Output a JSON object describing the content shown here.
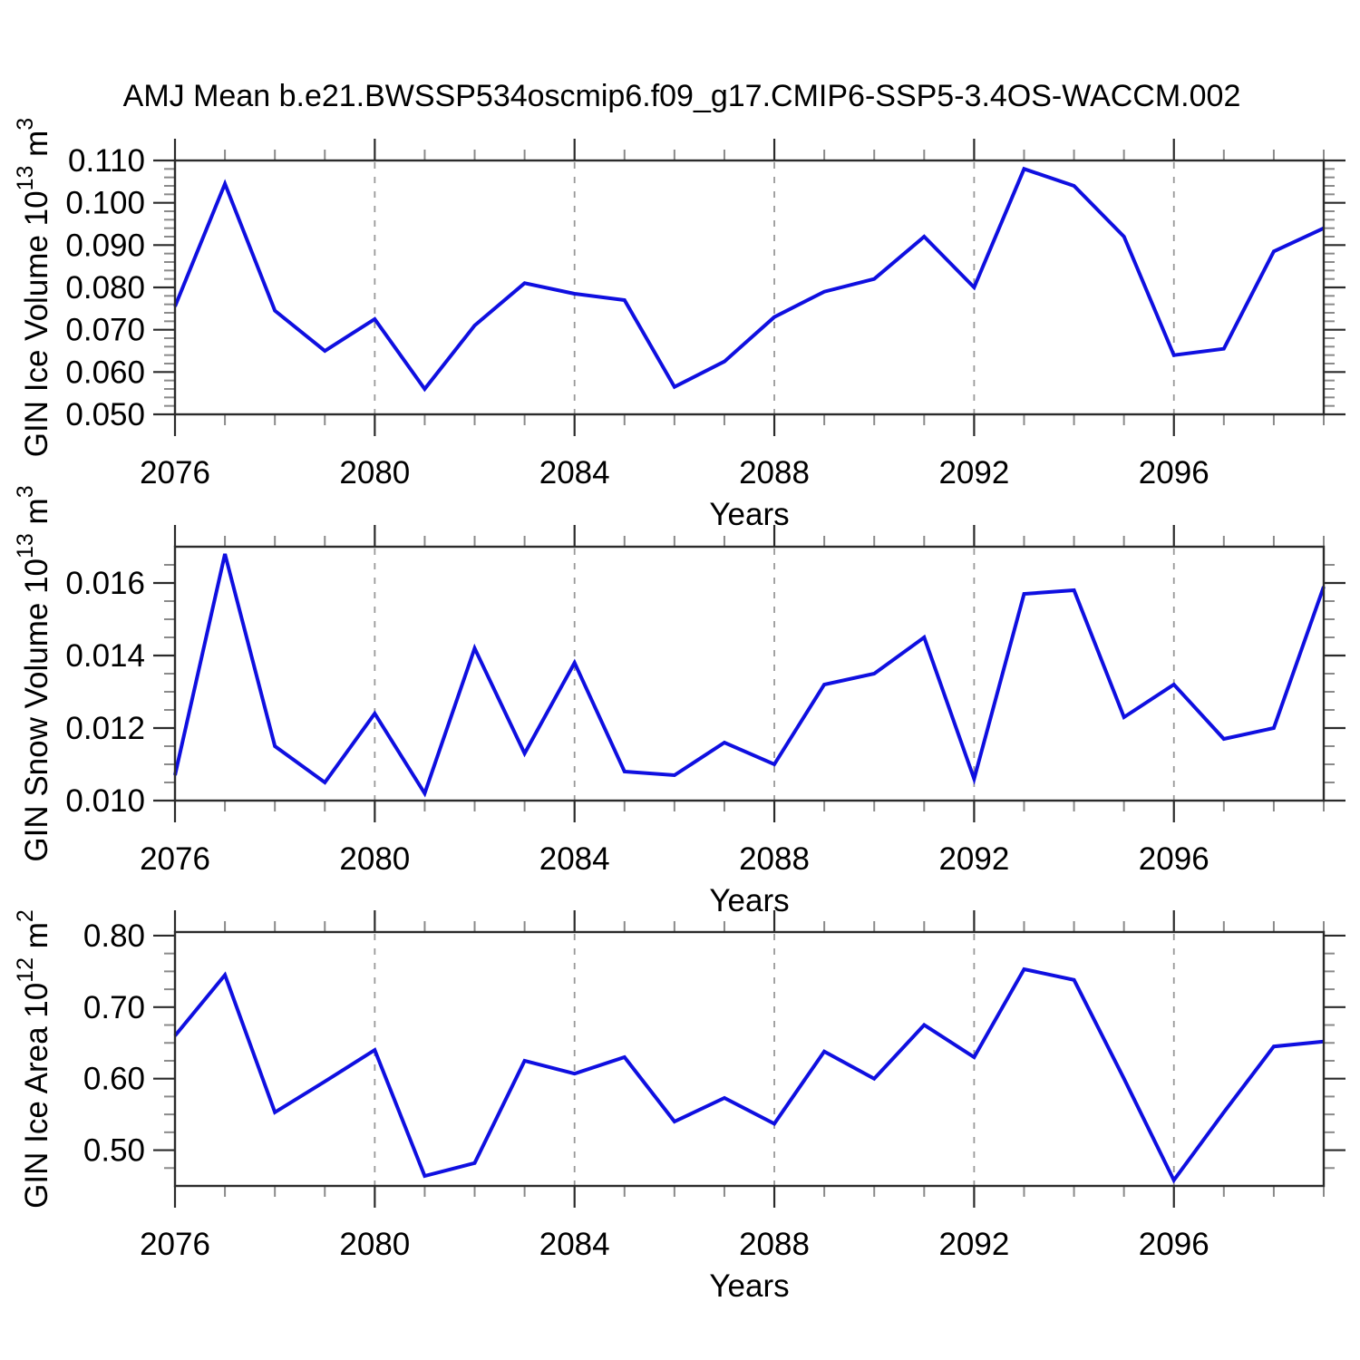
{
  "figure": {
    "title": "AMJ Mean b.e21.BWSSP534oscmip6.f09_g17.CMIP6-SSP5-3.4OS-WACCM.002",
    "background": "#ffffff"
  },
  "chart_data": {
    "type": "line",
    "title": "AMJ Mean b.e21.BWSSP534oscmip6.f09_g17.CMIP6-SSP5-3.4OS-WACCM.002",
    "xlabel": "Years",
    "x": [
      2076,
      2077,
      2078,
      2079,
      2080,
      2081,
      2082,
      2083,
      2084,
      2085,
      2086,
      2087,
      2088,
      2089,
      2090,
      2091,
      2092,
      2093,
      2094,
      2095,
      2096,
      2097,
      2098,
      2099
    ],
    "xlim": [
      2076,
      2099
    ],
    "x_major_ticks": [
      2076,
      2080,
      2084,
      2088,
      2092,
      2096
    ],
    "x_tick_labels": [
      "2076",
      "2080",
      "2084",
      "2088",
      "2092",
      "2096"
    ],
    "x_minor_step_years": 1,
    "x_gridlines": [
      2080,
      2084,
      2088,
      2092,
      2096
    ],
    "grid_style": "vertical-dashed",
    "legend": "none",
    "colors": {
      "line": "#0F0FE0",
      "axis": "#2b2b2b",
      "minor_tick": "#8a8a8a",
      "gridline": "#999999",
      "text": "#000000"
    },
    "panels": [
      {
        "id": "gin-ice-volume",
        "ylabel": "GIN Ice Volume 10^13 m^3",
        "ylabel_parts": [
          {
            "text": "GIN Ice Volume 10",
            "sup": false
          },
          {
            "text": "13",
            "sup": true
          },
          {
            "text": " m",
            "sup": false
          },
          {
            "text": "3",
            "sup": true
          }
        ],
        "ylim": [
          0.05,
          0.11
        ],
        "y_major_ticks": [
          0.05,
          0.06,
          0.07,
          0.08,
          0.09,
          0.1,
          0.11
        ],
        "y_tick_labels": [
          "0.050",
          "0.060",
          "0.070",
          "0.080",
          "0.090",
          "0.100",
          "0.110"
        ],
        "y_minor_step": 0.002,
        "values": [
          0.0755,
          0.1045,
          0.0745,
          0.065,
          0.0725,
          0.056,
          0.071,
          0.081,
          0.0785,
          0.077,
          0.0565,
          0.0625,
          0.073,
          0.079,
          0.082,
          0.092,
          0.08,
          0.108,
          0.104,
          0.092,
          0.064,
          0.0655,
          0.0885,
          0.094
        ]
      },
      {
        "id": "gin-snow-volume",
        "ylabel": "GIN Snow Volume 10^13 m^3",
        "ylabel_parts": [
          {
            "text": "GIN Snow Volume 10",
            "sup": false
          },
          {
            "text": "13",
            "sup": true
          },
          {
            "text": " m",
            "sup": false
          },
          {
            "text": "3",
            "sup": true
          }
        ],
        "ylim": [
          0.01,
          0.017
        ],
        "y_major_ticks": [
          0.01,
          0.012,
          0.014,
          0.016
        ],
        "y_tick_labels": [
          "0.010",
          "0.012",
          "0.014",
          "0.016"
        ],
        "y_minor_step": 0.0005,
        "values": [
          0.0107,
          0.0168,
          0.0115,
          0.0105,
          0.0124,
          0.0102,
          0.0142,
          0.0113,
          0.0138,
          0.0108,
          0.0107,
          0.0116,
          0.011,
          0.0132,
          0.0135,
          0.0145,
          0.0106,
          0.0157,
          0.0158,
          0.0123,
          0.0132,
          0.0117,
          0.012,
          0.0159
        ]
      },
      {
        "id": "gin-ice-area",
        "ylabel": "GIN Ice Area 10^12 m^2",
        "ylabel_parts": [
          {
            "text": "GIN Ice Area 10",
            "sup": false
          },
          {
            "text": "12",
            "sup": true
          },
          {
            "text": " m",
            "sup": false
          },
          {
            "text": "2",
            "sup": true
          }
        ],
        "ylim": [
          0.45,
          0.805
        ],
        "y_major_ticks": [
          0.5,
          0.6,
          0.7,
          0.8
        ],
        "y_tick_labels": [
          "0.50",
          "0.60",
          "0.70",
          "0.80"
        ],
        "y_minor_step": 0.025,
        "values": [
          0.66,
          0.745,
          0.553,
          0.596,
          0.64,
          0.464,
          0.482,
          0.625,
          0.607,
          0.63,
          0.54,
          0.573,
          0.537,
          0.638,
          0.6,
          0.675,
          0.63,
          0.753,
          0.738,
          0.6,
          0.458,
          0.553,
          0.645,
          0.652
        ]
      }
    ]
  }
}
